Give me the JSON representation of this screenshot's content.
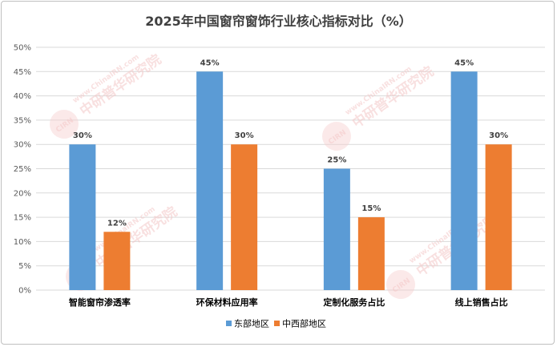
{
  "chart_data": {
    "type": "bar",
    "title": "2025年中国窗帘窗饰行业核心指标对比（%）",
    "categories": [
      "智能窗帘渗透率",
      "环保材料应用率",
      "定制化服务占比",
      "线上销售占比"
    ],
    "series": [
      {
        "name": "东部地区",
        "color": "#5b9bd5",
        "values": [
          30,
          45,
          25,
          45
        ]
      },
      {
        "name": "中西部地区",
        "color": "#ed7d31",
        "values": [
          12,
          30,
          15,
          30
        ]
      }
    ],
    "yticks": [
      "0%",
      "5%",
      "10%",
      "15%",
      "20%",
      "25%",
      "30%",
      "35%",
      "40%",
      "45%",
      "50%"
    ],
    "data_labels": [
      [
        "30%",
        "45%",
        "25%",
        "45%"
      ],
      [
        "12%",
        "30%",
        "15%",
        "30%"
      ]
    ],
    "ylim": [
      0,
      50
    ],
    "xlabel": "",
    "ylabel": "",
    "grid": true,
    "legend_position": "bottom"
  },
  "watermark": {
    "url_text": "www.ChinaIRN.com",
    "brand_text": "中研普华研究院",
    "logo_text": "CIRN"
  }
}
